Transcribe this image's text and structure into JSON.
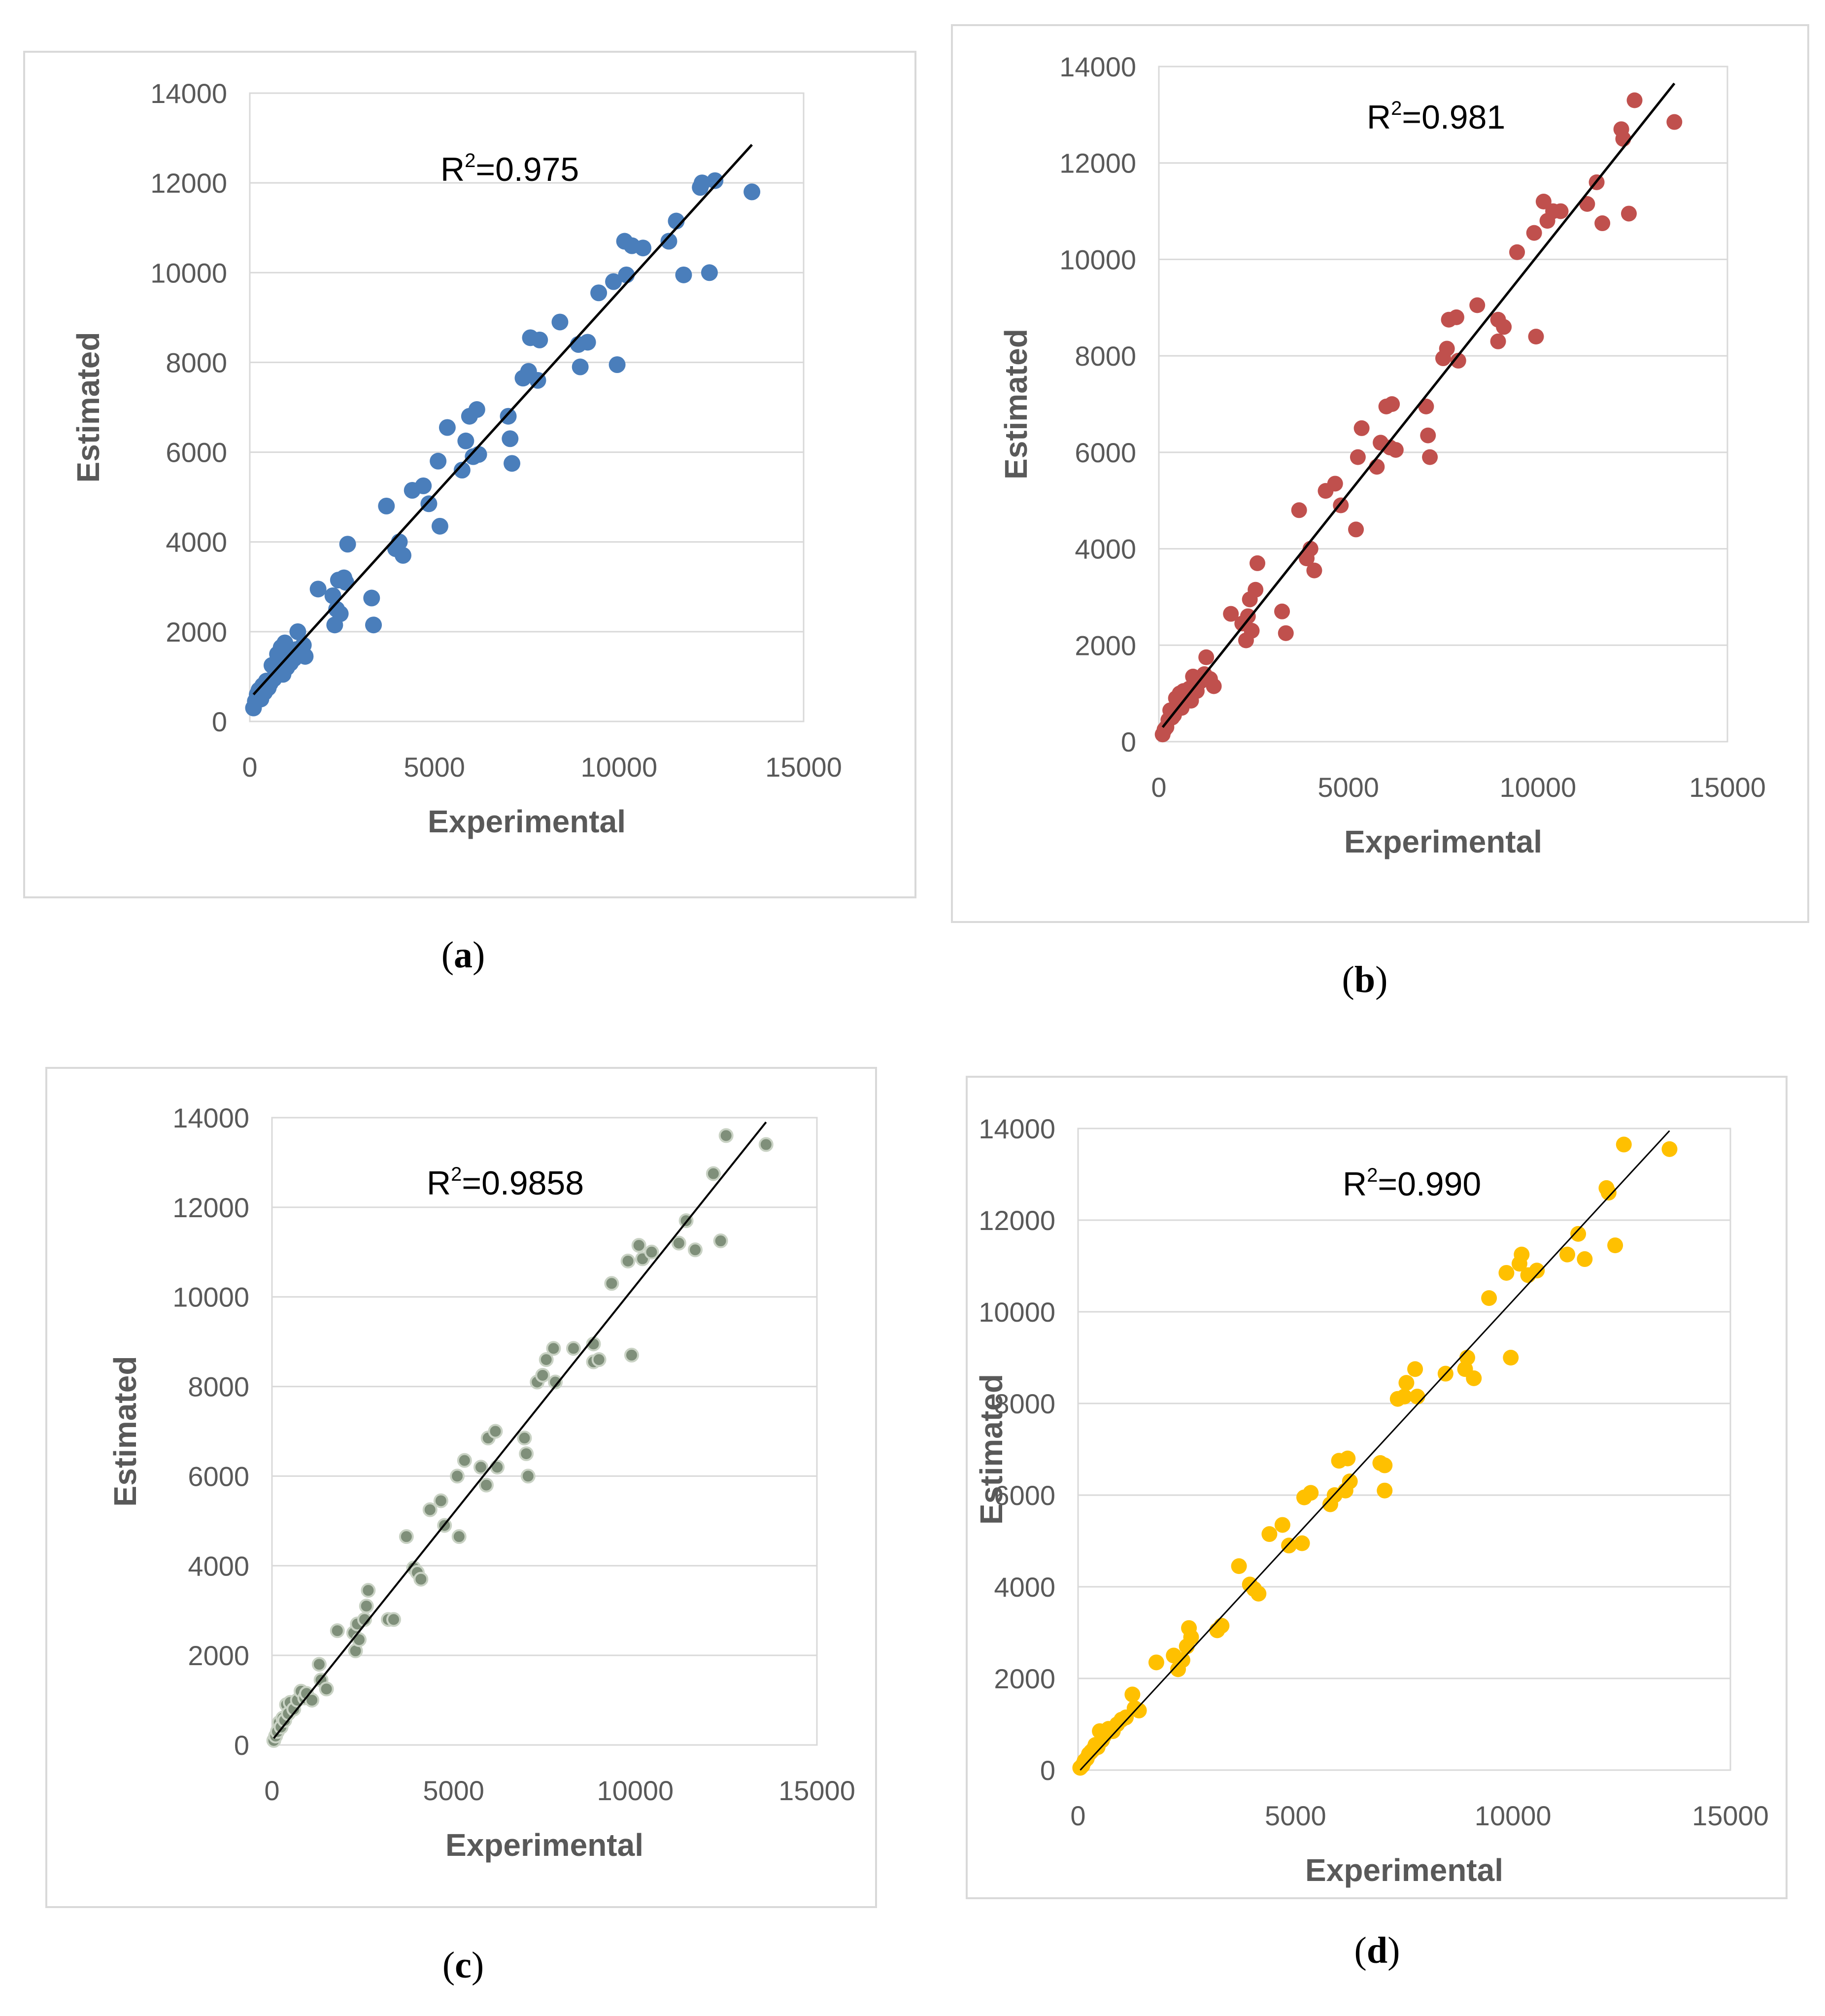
{
  "colors": {
    "panel_a": "#4a7ebb",
    "panel_b": "#c0504d",
    "panel_c": "#7f8f7a",
    "panel_d": "#ffc000",
    "fit_line": "#000000",
    "gridline": "#d9d9d9",
    "axis_text": "#595959"
  },
  "chart_data": [
    {
      "panel": "a",
      "caption": "a",
      "type": "scatter",
      "xlabel": "Experimental",
      "ylabel": "Estimated",
      "annotation_prefix": "R",
      "annotation_sup": "2",
      "annotation_value": "=0.975",
      "xlim": [
        0,
        15000
      ],
      "ylim": [
        0,
        14000
      ],
      "xticks": [
        "0",
        "5000",
        "10000",
        "15000"
      ],
      "yticks": [
        "0",
        "2000",
        "4000",
        "6000",
        "8000",
        "10000",
        "12000",
        "14000"
      ],
      "grid": true,
      "fit_line": {
        "x": [
          100,
          13600
        ],
        "y": [
          600,
          12850
        ]
      },
      "points": [
        [
          100,
          300
        ],
        [
          150,
          450
        ],
        [
          200,
          600
        ],
        [
          250,
          700
        ],
        [
          300,
          500
        ],
        [
          350,
          800
        ],
        [
          400,
          650
        ],
        [
          450,
          900
        ],
        [
          500,
          750
        ],
        [
          550,
          850
        ],
        [
          600,
          1250
        ],
        [
          650,
          950
        ],
        [
          700,
          1100
        ],
        [
          750,
          1500
        ],
        [
          800,
          1300
        ],
        [
          850,
          1650
        ],
        [
          900,
          1050
        ],
        [
          950,
          1750
        ],
        [
          1000,
          1200
        ],
        [
          1050,
          1550
        ],
        [
          1100,
          1300
        ],
        [
          1200,
          1400
        ],
        [
          1250,
          1600
        ],
        [
          1300,
          2000
        ],
        [
          1400,
          1500
        ],
        [
          1450,
          1700
        ],
        [
          1500,
          1450
        ],
        [
          1850,
          2950
        ],
        [
          2250,
          2800
        ],
        [
          2300,
          2150
        ],
        [
          2350,
          2500
        ],
        [
          2400,
          3150
        ],
        [
          2450,
          2400
        ],
        [
          2550,
          3200
        ],
        [
          2600,
          3100
        ],
        [
          2650,
          3950
        ],
        [
          3300,
          2750
        ],
        [
          3350,
          2150
        ],
        [
          3700,
          4800
        ],
        [
          3950,
          3850
        ],
        [
          4050,
          4000
        ],
        [
          4150,
          3700
        ],
        [
          4400,
          5150
        ],
        [
          4700,
          5250
        ],
        [
          4850,
          4850
        ],
        [
          5100,
          5800
        ],
        [
          5150,
          4350
        ],
        [
          5350,
          6550
        ],
        [
          5750,
          5600
        ],
        [
          5850,
          6250
        ],
        [
          5950,
          6800
        ],
        [
          6050,
          5900
        ],
        [
          6150,
          6950
        ],
        [
          6200,
          5950
        ],
        [
          7000,
          6800
        ],
        [
          7050,
          6300
        ],
        [
          7100,
          5750
        ],
        [
          7400,
          7650
        ],
        [
          7550,
          7800
        ],
        [
          7600,
          8550
        ],
        [
          7800,
          7600
        ],
        [
          7850,
          8500
        ],
        [
          8400,
          8900
        ],
        [
          8900,
          8400
        ],
        [
          8950,
          7900
        ],
        [
          9150,
          8450
        ],
        [
          9450,
          9550
        ],
        [
          9850,
          9800
        ],
        [
          9950,
          7950
        ],
        [
          10150,
          10700
        ],
        [
          10200,
          9950
        ],
        [
          10350,
          10600
        ],
        [
          10650,
          10550
        ],
        [
          11350,
          10700
        ],
        [
          11550,
          11150
        ],
        [
          11750,
          9950
        ],
        [
          12200,
          11900
        ],
        [
          12250,
          12000
        ],
        [
          12450,
          10000
        ],
        [
          12600,
          12050
        ],
        [
          13600,
          11800
        ]
      ]
    },
    {
      "panel": "b",
      "caption": "b",
      "type": "scatter",
      "xlabel": "Experimental",
      "ylabel": "Estimated",
      "annotation_prefix": "R",
      "annotation_sup": "2",
      "annotation_value": "=0.981",
      "xlim": [
        0,
        15000
      ],
      "ylim": [
        0,
        14000
      ],
      "xticks": [
        "0",
        "5000",
        "10000",
        "15000"
      ],
      "yticks": [
        "0",
        "2000",
        "4000",
        "6000",
        "8000",
        "10000",
        "12000",
        "14000"
      ],
      "grid": true,
      "fit_line": {
        "x": [
          100,
          13600
        ],
        "y": [
          300,
          13650
        ]
      },
      "points": [
        [
          100,
          150
        ],
        [
          150,
          250
        ],
        [
          200,
          300
        ],
        [
          250,
          450
        ],
        [
          300,
          650
        ],
        [
          350,
          500
        ],
        [
          400,
          550
        ],
        [
          450,
          900
        ],
        [
          500,
          800
        ],
        [
          550,
          1000
        ],
        [
          600,
          700
        ],
        [
          650,
          1050
        ],
        [
          700,
          950
        ],
        [
          800,
          1100
        ],
        [
          850,
          850
        ],
        [
          900,
          1350
        ],
        [
          950,
          1200
        ],
        [
          1000,
          1050
        ],
        [
          1100,
          1250
        ],
        [
          1200,
          1400
        ],
        [
          1250,
          1750
        ],
        [
          1350,
          1300
        ],
        [
          1450,
          1150
        ],
        [
          1900,
          2650
        ],
        [
          2200,
          2450
        ],
        [
          2300,
          2100
        ],
        [
          2350,
          2600
        ],
        [
          2400,
          2950
        ],
        [
          2450,
          2300
        ],
        [
          2550,
          3150
        ],
        [
          2600,
          3700
        ],
        [
          3250,
          2700
        ],
        [
          3350,
          2250
        ],
        [
          3700,
          4800
        ],
        [
          3900,
          3800
        ],
        [
          4000,
          4000
        ],
        [
          4100,
          3550
        ],
        [
          4400,
          5200
        ],
        [
          4650,
          5350
        ],
        [
          4800,
          4900
        ],
        [
          5200,
          4400
        ],
        [
          5250,
          5900
        ],
        [
          5350,
          6500
        ],
        [
          5750,
          5700
        ],
        [
          5850,
          6200
        ],
        [
          6000,
          6950
        ],
        [
          6100,
          6100
        ],
        [
          6150,
          7000
        ],
        [
          6250,
          6050
        ],
        [
          7050,
          6950
        ],
        [
          7100,
          6350
        ],
        [
          7150,
          5900
        ],
        [
          7500,
          7950
        ],
        [
          7600,
          8150
        ],
        [
          7650,
          8750
        ],
        [
          7850,
          8800
        ],
        [
          7900,
          7900
        ],
        [
          8400,
          9050
        ],
        [
          8950,
          8300
        ],
        [
          8950,
          8750
        ],
        [
          9100,
          8600
        ],
        [
          9450,
          10150
        ],
        [
          9900,
          10550
        ],
        [
          9950,
          8400
        ],
        [
          10150,
          11200
        ],
        [
          10250,
          10800
        ],
        [
          10400,
          11000
        ],
        [
          10600,
          11000
        ],
        [
          11300,
          11150
        ],
        [
          11550,
          11600
        ],
        [
          11700,
          10750
        ],
        [
          12200,
          12700
        ],
        [
          12250,
          12500
        ],
        [
          12400,
          10950
        ],
        [
          12550,
          13300
        ],
        [
          13600,
          12850
        ]
      ]
    },
    {
      "panel": "c",
      "caption": "c",
      "type": "scatter",
      "xlabel": "Experimental",
      "ylabel": "Estimated",
      "annotation_prefix": "R",
      "annotation_sup": "2",
      "annotation_value": "=0.9858",
      "xlim": [
        0,
        15000
      ],
      "ylim": [
        0,
        14000
      ],
      "xticks": [
        "0",
        "5000",
        "10000",
        "15000"
      ],
      "yticks": [
        "0",
        "2000",
        "4000",
        "6000",
        "8000",
        "10000",
        "12000",
        "14000"
      ],
      "grid": true,
      "fit_line": {
        "x": [
          50,
          13600
        ],
        "y": [
          150,
          13900
        ]
      },
      "points": [
        [
          50,
          100
        ],
        [
          100,
          200
        ],
        [
          150,
          300
        ],
        [
          200,
          500
        ],
        [
          250,
          400
        ],
        [
          300,
          600
        ],
        [
          350,
          550
        ],
        [
          400,
          900
        ],
        [
          450,
          700
        ],
        [
          500,
          950
        ],
        [
          600,
          800
        ],
        [
          700,
          1000
        ],
        [
          800,
          1200
        ],
        [
          900,
          1050
        ],
        [
          950,
          1150
        ],
        [
          1100,
          1000
        ],
        [
          1300,
          1800
        ],
        [
          1350,
          1450
        ],
        [
          1500,
          1250
        ],
        [
          1800,
          2550
        ],
        [
          2250,
          2500
        ],
        [
          2300,
          2100
        ],
        [
          2350,
          2700
        ],
        [
          2400,
          2350
        ],
        [
          2550,
          2800
        ],
        [
          2600,
          3100
        ],
        [
          2650,
          3450
        ],
        [
          3200,
          2800
        ],
        [
          3350,
          2800
        ],
        [
          3700,
          4650
        ],
        [
          3900,
          3950
        ],
        [
          4000,
          3850
        ],
        [
          4100,
          3700
        ],
        [
          4350,
          5250
        ],
        [
          4650,
          5450
        ],
        [
          4750,
          4900
        ],
        [
          5100,
          6000
        ],
        [
          5150,
          4650
        ],
        [
          5300,
          6350
        ],
        [
          5750,
          6200
        ],
        [
          5900,
          5800
        ],
        [
          5950,
          6850
        ],
        [
          6150,
          7000
        ],
        [
          6200,
          6200
        ],
        [
          6950,
          6850
        ],
        [
          7000,
          6500
        ],
        [
          7050,
          6000
        ],
        [
          7300,
          8100
        ],
        [
          7450,
          8250
        ],
        [
          7550,
          8600
        ],
        [
          7750,
          8850
        ],
        [
          7800,
          8100
        ],
        [
          8300,
          8850
        ],
        [
          8850,
          8950
        ],
        [
          8850,
          8550
        ],
        [
          9000,
          8600
        ],
        [
          9350,
          10300
        ],
        [
          9800,
          10800
        ],
        [
          9900,
          8700
        ],
        [
          10100,
          11150
        ],
        [
          10200,
          10850
        ],
        [
          10450,
          11000
        ],
        [
          11200,
          11200
        ],
        [
          11400,
          11700
        ],
        [
          11650,
          11050
        ],
        [
          12150,
          12750
        ],
        [
          12350,
          11250
        ],
        [
          12500,
          13600
        ],
        [
          13600,
          13400
        ]
      ]
    },
    {
      "panel": "d",
      "caption": "d",
      "type": "scatter",
      "xlabel": "Experimental",
      "ylabel": "Estimated",
      "annotation_prefix": "R",
      "annotation_sup": "2",
      "annotation_value": "=0.990",
      "xlim": [
        0,
        15000
      ],
      "ylim": [
        0,
        14000
      ],
      "xticks": [
        "0",
        "5000",
        "10000",
        "15000"
      ],
      "yticks": [
        "0",
        "2000",
        "4000",
        "6000",
        "8000",
        "10000",
        "12000",
        "14000"
      ],
      "grid": true,
      "fit_line": {
        "x": [
          50,
          13600
        ],
        "y": [
          0,
          13950
        ]
      },
      "points": [
        [
          50,
          50
        ],
        [
          100,
          100
        ],
        [
          150,
          200
        ],
        [
          200,
          250
        ],
        [
          250,
          350
        ],
        [
          300,
          400
        ],
        [
          350,
          450
        ],
        [
          400,
          550
        ],
        [
          450,
          500
        ],
        [
          500,
          850
        ],
        [
          550,
          650
        ],
        [
          600,
          750
        ],
        [
          700,
          900
        ],
        [
          800,
          850
        ],
        [
          900,
          1000
        ],
        [
          1000,
          1100
        ],
        [
          1100,
          1150
        ],
        [
          1250,
          1650
        ],
        [
          1300,
          1350
        ],
        [
          1400,
          1300
        ],
        [
          1800,
          2350
        ],
        [
          2200,
          2500
        ],
        [
          2300,
          2200
        ],
        [
          2400,
          2400
        ],
        [
          2500,
          2700
        ],
        [
          2550,
          3100
        ],
        [
          2600,
          2900
        ],
        [
          3200,
          3050
        ],
        [
          3300,
          3150
        ],
        [
          3700,
          4450
        ],
        [
          3950,
          4050
        ],
        [
          4050,
          3950
        ],
        [
          4150,
          3850
        ],
        [
          4400,
          5150
        ],
        [
          4700,
          5350
        ],
        [
          4850,
          4900
        ],
        [
          5150,
          4950
        ],
        [
          5200,
          5950
        ],
        [
          5350,
          6050
        ],
        [
          5800,
          5800
        ],
        [
          5900,
          6000
        ],
        [
          6000,
          6750
        ],
        [
          6150,
          6100
        ],
        [
          6200,
          6800
        ],
        [
          6250,
          6300
        ],
        [
          6950,
          6700
        ],
        [
          7050,
          6650
        ],
        [
          7050,
          6100
        ],
        [
          7350,
          8100
        ],
        [
          7500,
          8150
        ],
        [
          7550,
          8450
        ],
        [
          7750,
          8750
        ],
        [
          7800,
          8150
        ],
        [
          8450,
          8650
        ],
        [
          8900,
          8750
        ],
        [
          8950,
          9000
        ],
        [
          9100,
          8550
        ],
        [
          9450,
          10300
        ],
        [
          9850,
          10850
        ],
        [
          9950,
          9000
        ],
        [
          10150,
          11050
        ],
        [
          10200,
          11250
        ],
        [
          10350,
          10800
        ],
        [
          10550,
          10900
        ],
        [
          11250,
          11250
        ],
        [
          11500,
          11700
        ],
        [
          11650,
          11150
        ],
        [
          12150,
          12700
        ],
        [
          12200,
          12600
        ],
        [
          12350,
          11450
        ],
        [
          12550,
          13650
        ],
        [
          13600,
          13550
        ]
      ]
    }
  ]
}
